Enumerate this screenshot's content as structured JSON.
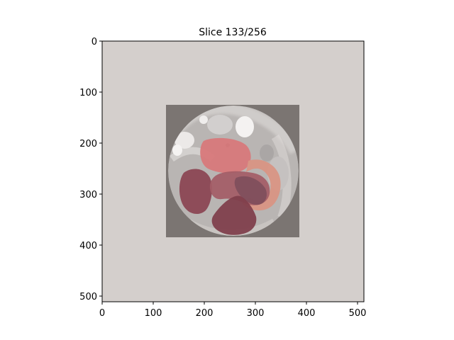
{
  "title": "Slice 133/256",
  "x_axis": {
    "ticks": [
      0,
      100,
      200,
      300,
      400,
      500
    ],
    "range": [
      0,
      511
    ]
  },
  "y_axis": {
    "ticks": [
      0,
      100,
      200,
      300,
      400,
      500
    ],
    "range": [
      0,
      511
    ],
    "inverted": true
  },
  "colors": {
    "background_tint": "#d4cfcc",
    "scan_field": "#7b7572",
    "body": "#b8b4b2",
    "bright_structure": "#f1efee",
    "seg_upper": "#d77a7c",
    "seg_left": "#8b4452",
    "seg_center": "#a45d66",
    "seg_lower": "#7f3f4b",
    "seg_right": "#d99584",
    "seg_dark": "#7b4c5a"
  }
}
